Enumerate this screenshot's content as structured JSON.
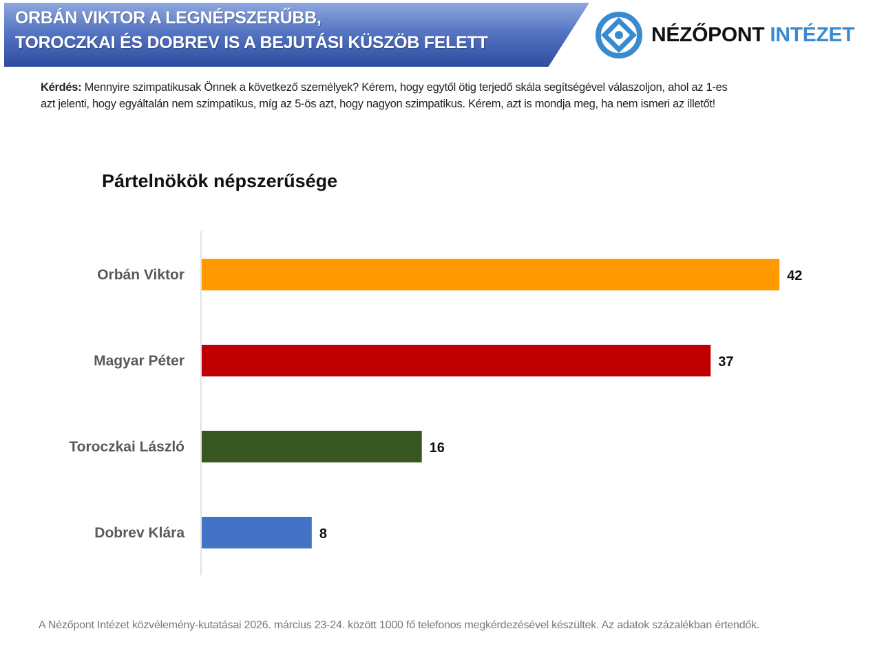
{
  "header": {
    "line1": "ORBÁN VIKTOR A LEGNÉPSZERŰBB,",
    "line2": "TOROCZKAI ÉS DOBREV IS A BEJUTÁSI KÜSZÖB FELETT"
  },
  "logo": {
    "word1": "NÉZŐPONT",
    "word2": "INTÉZET",
    "color_dark": "#111111",
    "color_blue": "#3a8ad0"
  },
  "question": {
    "label": "Kérdés:",
    "text": " Mennyire szimpatikusak Önnek a következő személyek? Kérem, hogy egytől ötig terjedő skála segítségével válaszoljon, ahol az 1-es azt jelenti, hogy egyáltalán nem szimpatikus, míg az 5-ös azt, hogy nagyon szimpatikus. Kérem, azt is mondja meg, ha nem ismeri az illetőt!"
  },
  "footer": "A Nézőpont Intézet közvélemény-kutatásai 2026. március 23-24. között 1000 fő telefonos megkérdezésével készültek. Az adatok százalékban értendők.",
  "chart_data": {
    "type": "bar",
    "orientation": "horizontal",
    "title": "Pártelnökök népszerűsége",
    "categories": [
      "Orbán Viktor",
      "Magyar Péter",
      "Toroczkai László",
      "Dobrev Klára"
    ],
    "values": [
      42,
      37,
      16,
      8
    ],
    "colors": [
      "#ff9900",
      "#c00000",
      "#385723",
      "#4472c4"
    ],
    "xlim": [
      0,
      45
    ],
    "grid": false,
    "legend": "none",
    "data_labels": true
  }
}
